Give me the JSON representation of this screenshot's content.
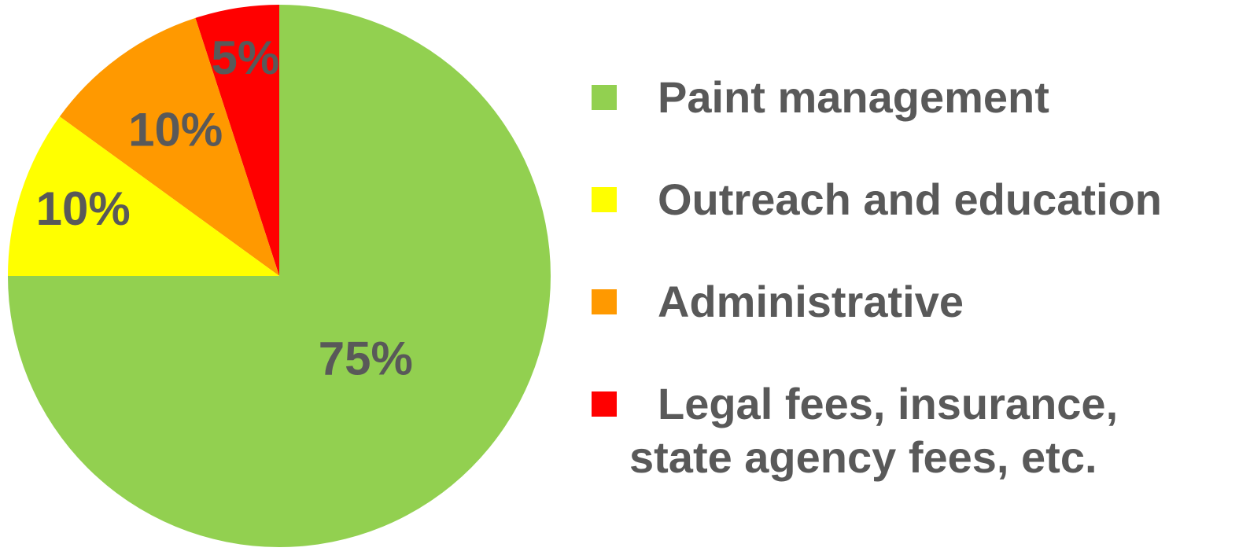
{
  "chart_data": {
    "type": "pie",
    "title": "",
    "start_angle": "12 o'clock",
    "direction": "counterclockwise",
    "legend_position": "right",
    "slices": [
      {
        "label": "Legal fees, insurance, state agency fees, etc.",
        "label_line1": "Legal fees, insurance,",
        "label_line2": "state agency fees, etc.",
        "value": 5,
        "display": "5%",
        "color": "#FF0000"
      },
      {
        "label": "Administrative",
        "value": 10,
        "display": "10%",
        "color": "#FF9900"
      },
      {
        "label": "Outreach and education",
        "value": 10,
        "display": "10%",
        "color": "#FFFF00"
      },
      {
        "label": "Paint management",
        "value": 75,
        "display": "75%",
        "color": "#92D050"
      }
    ],
    "legend_order": [
      3,
      2,
      1,
      0
    ]
  }
}
